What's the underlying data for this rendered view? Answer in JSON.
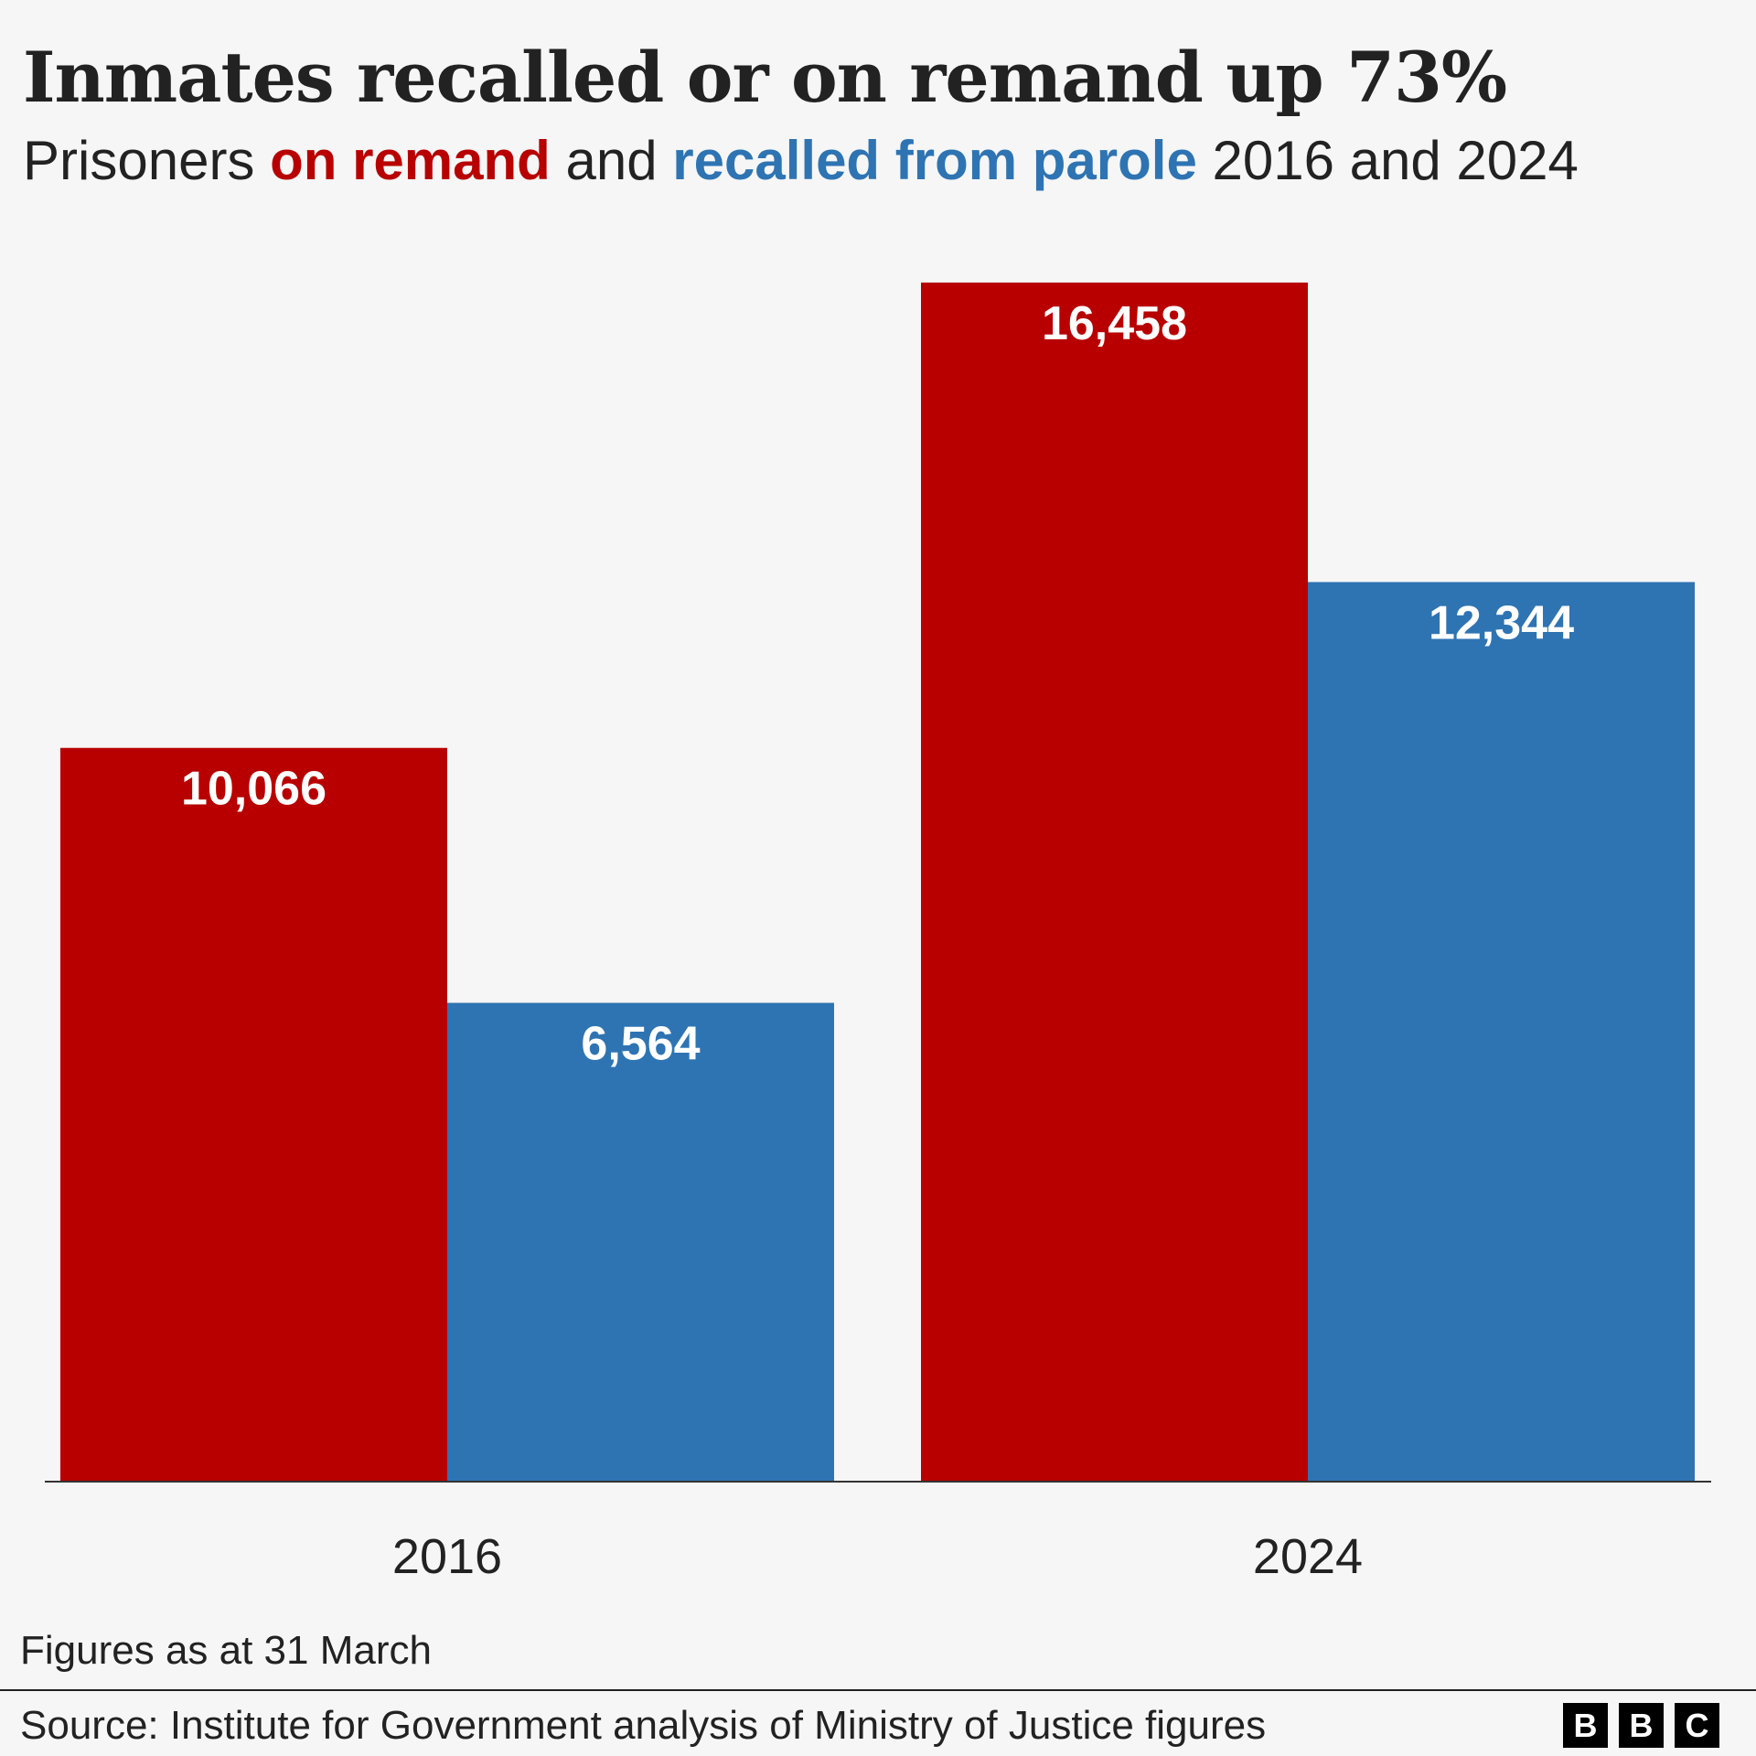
{
  "title": "Inmates recalled or on remand up 73%",
  "subtitle": {
    "prefix": "Prisoners ",
    "remand": "on remand",
    "mid": " and ",
    "recalled": "recalled from parole",
    "suffix": " 2016 and 2024"
  },
  "footnote": "Figures as at 31 March",
  "source": "Source: Institute for Government analysis of Ministry of Justice figures",
  "logo": [
    "B",
    "B",
    "C"
  ],
  "chart_data": {
    "type": "bar",
    "categories": [
      "2016",
      "2024"
    ],
    "series": [
      {
        "name": "on remand",
        "color": "#b80000",
        "values": [
          10066,
          16458
        ],
        "labels": [
          "10,066",
          "16,458"
        ]
      },
      {
        "name": "recalled from parole",
        "color": "#2e74b3",
        "values": [
          6564,
          12344
        ],
        "labels": [
          "6,564",
          "12,344"
        ]
      }
    ],
    "ylim": [
      0,
      17000
    ],
    "grid": false,
    "legend": "in subtitle"
  }
}
